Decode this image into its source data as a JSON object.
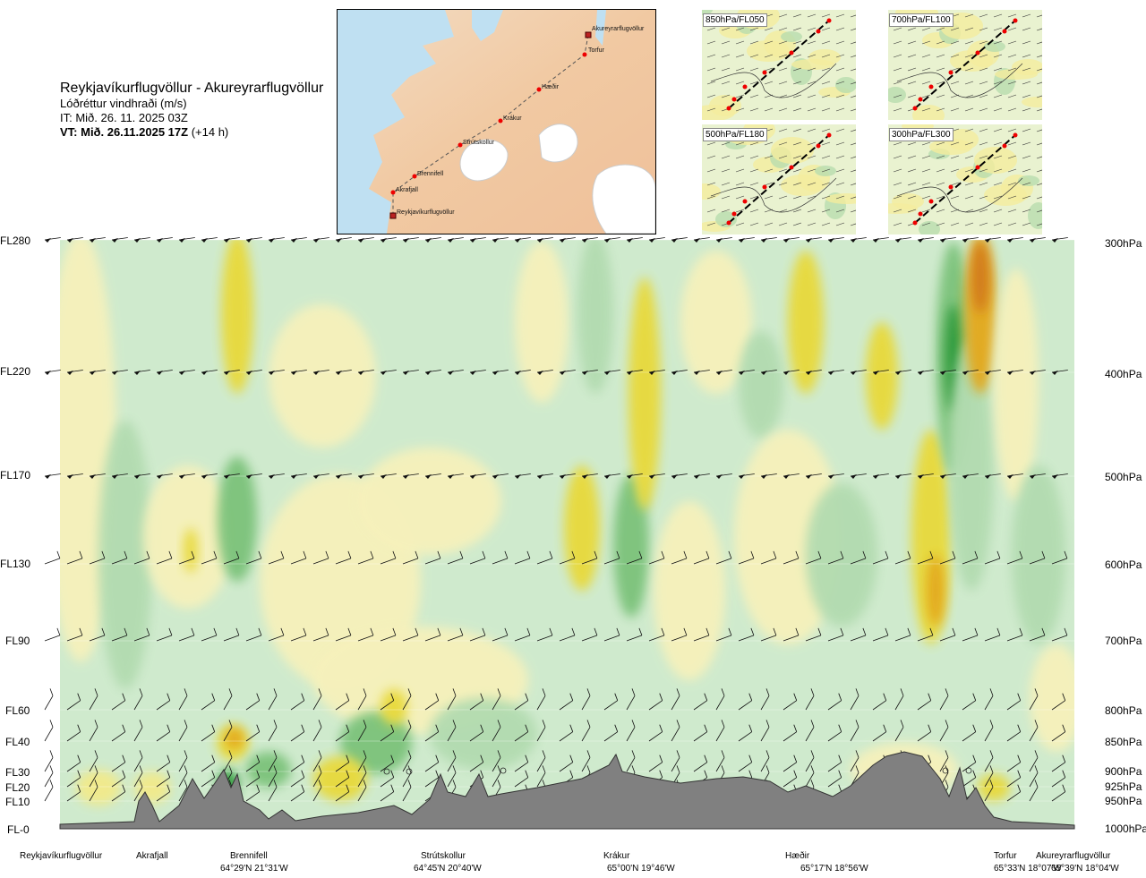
{
  "header": {
    "route": "Reykjavíkurflugvöllur - Akureyrarflugvöllur",
    "parameter": "Lóðréttur vindhraði (m/s)",
    "issue_time": "IT: Mið. 26. 11. 2025 03Z",
    "valid_time": "VT: Mið. 26.11.2025 17Z",
    "lead_time": "(+14 h)"
  },
  "route_map": {
    "points": [
      {
        "name": "Akureyrarflugvöllur"
      },
      {
        "name": "Torfur"
      },
      {
        "name": "Hæðir"
      },
      {
        "name": "Krákur"
      },
      {
        "name": "Strútskollur"
      },
      {
        "name": "Brennifell"
      },
      {
        "name": "Akrafjall"
      },
      {
        "name": "Reykjavíkurflugvöllur"
      }
    ]
  },
  "level_maps": [
    {
      "label": "850hPa/FL050"
    },
    {
      "label": "700hPa/FL100"
    },
    {
      "label": "500hPa/FL180"
    },
    {
      "label": "300hPa/FL300"
    }
  ],
  "chart_data": {
    "type": "heatmap",
    "title": "Lóðréttur vindhraði (m/s)",
    "y_left_labels": [
      "FL280",
      "FL220",
      "FL170",
      "FL130",
      "FL90",
      "FL60",
      "FL40",
      "FL30",
      "FL20",
      "FL10",
      "FL-0"
    ],
    "y_right_labels": [
      "300hPa",
      "400hPa",
      "500hPa",
      "600hPa",
      "700hPa",
      "800hPa",
      "850hPa",
      "900hPa",
      "925hPa",
      "950hPa",
      "1000hPa"
    ],
    "waypoints": [
      {
        "name": "Reykjavíkurflugvöllur",
        "coord": ""
      },
      {
        "name": "Akrafjall",
        "coord": ""
      },
      {
        "name": "Brennifell",
        "coord": "64°29'N 21°31'W"
      },
      {
        "name": "Strútskollur",
        "coord": "64°45'N 20°40'W"
      },
      {
        "name": "Krákur",
        "coord": "65°00'N 19°46'W"
      },
      {
        "name": "Hæðir",
        "coord": "65°17'N 18°56'W"
      },
      {
        "name": "Torfur",
        "coord": "65°33'N 18°07'W"
      },
      {
        "name": "Akureyrarflugvöllur",
        "coord": "65°39'N 18°04'W"
      }
    ],
    "colors": {
      "strong_down": "#2e9a3a",
      "down": "#7cc27a",
      "weak_down": "#b2dbb0",
      "very_weak_down": "#cfeacd",
      "neutral": "#f1f9e8",
      "very_weak_up": "#f6f1bb",
      "weak_up": "#f2ea8a",
      "up": "#e8d93a",
      "strong_up": "#e3a81b",
      "very_strong_up": "#d27a1e",
      "terrain": "#808080"
    }
  }
}
